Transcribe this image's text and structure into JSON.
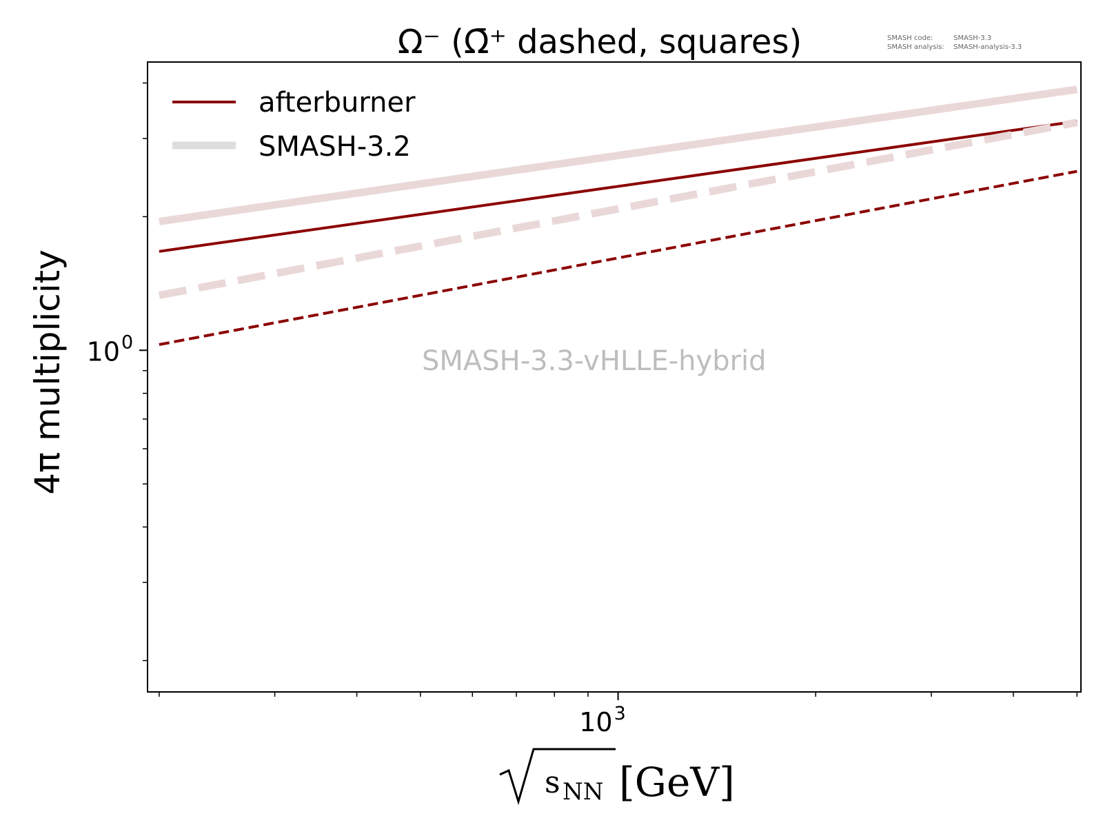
{
  "chart_data": {
    "type": "line",
    "title": "Ω⁻ (Ω̄⁺ dashed, squares)",
    "xlabel": "√sNN [GeV]",
    "xlabel_radicand": "s",
    "xlabel_sub": "NN",
    "xlabel_unit": "[GeV]",
    "ylabel": "4π multiplicity",
    "xscale": "log",
    "yscale": "log",
    "xlim": [
      192,
      5070
    ],
    "ylim": [
      0.17,
      4.46
    ],
    "x_major_ticks": [
      {
        "value": 1000,
        "base": "10",
        "exp": "3"
      }
    ],
    "y_major_ticks": [
      {
        "value": 1,
        "base": "10",
        "exp": "0"
      }
    ],
    "x_minor_ticks": [
      200,
      300,
      400,
      500,
      600,
      700,
      800,
      900,
      2000,
      3000,
      4000,
      5000
    ],
    "y_minor_ticks": [
      0.2,
      0.3,
      0.4,
      0.5,
      0.6,
      0.7,
      0.8,
      0.9,
      2,
      3,
      4
    ],
    "legend_position": "top-left",
    "legend": [
      {
        "label": "afterburner",
        "color": "#8b0000"
      },
      {
        "label": "SMASH-3.2",
        "color": "#dddddd"
      }
    ],
    "series": [
      {
        "name": "SMASH-3.2 Ω⁻",
        "style": "solid",
        "color": "#ead8d8",
        "x": [
          200,
          5000
        ],
        "y": [
          1.95,
          3.87
        ]
      },
      {
        "name": "afterburner Ω⁻",
        "style": "solid",
        "color": "#8b0000",
        "x": [
          200,
          5000
        ],
        "y": [
          1.67,
          3.28
        ]
      },
      {
        "name": "SMASH-3.2 Ω̄⁺",
        "style": "dashed",
        "color": "#ead8d8",
        "x": [
          200,
          5000
        ],
        "y": [
          1.33,
          3.26
        ]
      },
      {
        "name": "afterburner Ω̄⁺",
        "style": "dashed",
        "color": "#8b0000",
        "x": [
          200,
          5000
        ],
        "y": [
          1.03,
          2.53
        ]
      }
    ],
    "watermark": "SMASH-3.3-vHLLE-hybrid",
    "version_info": {
      "code_label": "SMASH code:",
      "code_value": "SMASH-3.3",
      "analysis_label": "SMASH analysis:",
      "analysis_value": "SMASH-analysis-3.3"
    }
  }
}
